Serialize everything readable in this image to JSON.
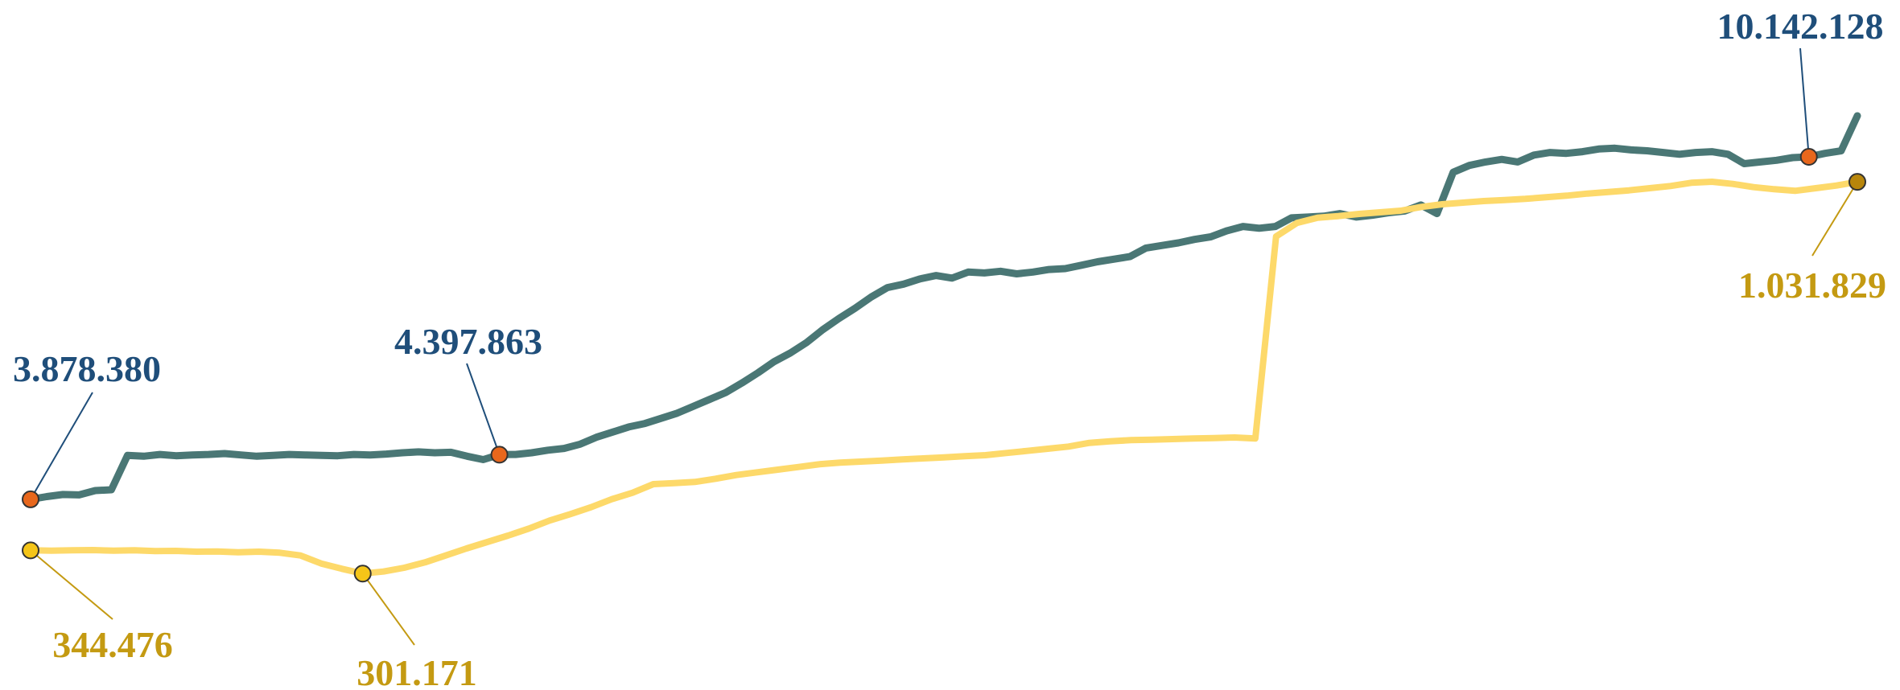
{
  "chart_data": {
    "type": "line",
    "title": "",
    "xlabel": "",
    "ylabel": "",
    "grid": false,
    "legend": "none",
    "axes_visible": false,
    "series": [
      {
        "color": "#4a7775",
        "marker_color": "#e8671c",
        "label_color": "#1f4e7a",
        "values": [
          3878380,
          3910000,
          3935000,
          3930000,
          3980000,
          3990000,
          4390000,
          4380000,
          4400000,
          4385000,
          4395000,
          4400000,
          4410000,
          4395000,
          4380000,
          4390000,
          4400000,
          4395000,
          4390000,
          4385000,
          4400000,
          4395000,
          4405000,
          4420000,
          4430000,
          4420000,
          4425000,
          4380000,
          4340000,
          4397863,
          4400000,
          4420000,
          4450000,
          4470000,
          4520000,
          4600000,
          4660000,
          4720000,
          4760000,
          4820000,
          4880000,
          4960000,
          5040000,
          5120000,
          5230000,
          5350000,
          5480000,
          5580000,
          5700000,
          5850000,
          5980000,
          6100000,
          6230000,
          6340000,
          6380000,
          6440000,
          6480000,
          6450000,
          6520000,
          6510000,
          6530000,
          6500000,
          6520000,
          6550000,
          6560000,
          6600000,
          6640000,
          6670000,
          6700000,
          6800000,
          6830000,
          6860000,
          6900000,
          6930000,
          7000000,
          7050000,
          7030000,
          7050000,
          7150000,
          7160000,
          7170000,
          7200000,
          7160000,
          7180000,
          7210000,
          7230000,
          7300000,
          7200000,
          7680000,
          7760000,
          7800000,
          7830000,
          7800000,
          7880000,
          7910000,
          7900000,
          7920000,
          7950000,
          7960000,
          7940000,
          7930000,
          7910000,
          7890000,
          7910000,
          7920000,
          7890000,
          7780000,
          7800000,
          7820000,
          7850000,
          7860000,
          7900000,
          7930000,
          10142128
        ],
        "labels_at": [
          0,
          29,
          110
        ]
      },
      {
        "color": "#fdd96a",
        "marker_color": "#f5c518",
        "end_marker_color": "#b8860b",
        "label_color": "#c49a12",
        "values": [
          344476,
          344000,
          344500,
          345000,
          344000,
          344500,
          343000,
          343500,
          342000,
          342500,
          341000,
          342000,
          340000,
          335000,
          320000,
          310000,
          301171,
          305000,
          312000,
          322000,
          335000,
          348000,
          360000,
          372000,
          385000,
          400000,
          412000,
          425000,
          440000,
          452000,
          468000,
          470000,
          472000,
          478000,
          485000,
          490000,
          495000,
          500000,
          505000,
          508000,
          510000,
          512000,
          514000,
          516000,
          518000,
          520000,
          522000,
          526000,
          530000,
          534000,
          538000,
          545000,
          548000,
          550000,
          551000,
          552000,
          553000,
          554000,
          555000,
          553000,
          930000,
          955000,
          965000,
          968000,
          972000,
          975000,
          978000,
          985000,
          990000,
          993000,
          996000,
          998000,
          1000000,
          1003000,
          1006000,
          1010000,
          1013000,
          1016000,
          1020000,
          1024000,
          1030000,
          1032000,
          1028000,
          1022000,
          1018000,
          1015000,
          1020000,
          1025000,
          1031829
        ],
        "labels_at": [
          0,
          16,
          88
        ]
      }
    ],
    "data_labels": [
      {
        "series": 0,
        "text": "3.878.380"
      },
      {
        "series": 0,
        "text": "4.397.863"
      },
      {
        "series": 0,
        "text": "10.142.128"
      },
      {
        "series": 1,
        "text": "344.476"
      },
      {
        "series": 1,
        "text": "301.171"
      },
      {
        "series": 1,
        "text": "1.031.829"
      }
    ]
  }
}
